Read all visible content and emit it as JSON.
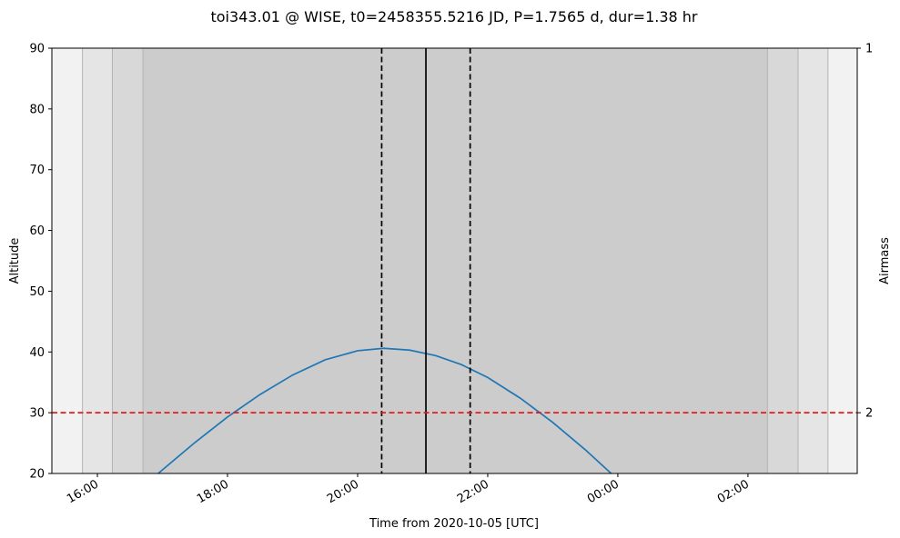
{
  "chart_data": {
    "type": "line",
    "title": "toi343.01 @ WISE, t0=2458355.5216 JD, P=1.7565 d, dur=1.38 hr",
    "xlabel": "Time from 2020-10-05 [UTC]",
    "ylabel": "Altitude",
    "y2label": "Airmass",
    "ylim": [
      20,
      90
    ],
    "xlim_hours": [
      15.3,
      27.68
    ],
    "x_ticks": [
      {
        "label": "16:00",
        "hour": 16
      },
      {
        "label": "18:00",
        "hour": 18
      },
      {
        "label": "20:00",
        "hour": 20
      },
      {
        "label": "22:00",
        "hour": 22
      },
      {
        "label": "00:00",
        "hour": 24
      },
      {
        "label": "02:00",
        "hour": 26
      }
    ],
    "y_ticks": [
      20,
      30,
      40,
      50,
      60,
      70,
      80,
      90
    ],
    "y2_ticks": [
      {
        "label": "1",
        "altitude": 90
      },
      {
        "label": "2",
        "altitude": 30
      }
    ],
    "twilight_bands": [
      {
        "start": 15.3,
        "end": 15.77,
        "color": "#f2f2f2"
      },
      {
        "start": 15.77,
        "end": 16.23,
        "color": "#e5e5e5"
      },
      {
        "start": 16.23,
        "end": 16.7,
        "color": "#d8d8d8"
      },
      {
        "start": 16.7,
        "end": 26.3,
        "color": "#cccccc"
      },
      {
        "start": 26.3,
        "end": 26.77,
        "color": "#d8d8d8"
      },
      {
        "start": 26.77,
        "end": 27.23,
        "color": "#e5e5e5"
      },
      {
        "start": 27.23,
        "end": 27.68,
        "color": "#f2f2f2"
      }
    ],
    "transit": {
      "ingress": 20.37,
      "mid": 21.05,
      "egress": 21.73
    },
    "altitude_limit": 30,
    "series": [
      {
        "color": "#1f77b4",
        "x": [
          16.5,
          17.0,
          17.5,
          18.0,
          18.5,
          19.0,
          19.5,
          20.0,
          20.4,
          20.8,
          21.2,
          21.6,
          22.0,
          22.5,
          23.0,
          23.5,
          24.0,
          24.5
        ],
        "y": [
          16.0,
          20.6,
          25.1,
          29.3,
          33.0,
          36.2,
          38.7,
          40.2,
          40.6,
          40.3,
          39.4,
          37.9,
          35.8,
          32.4,
          28.4,
          23.9,
          19.0,
          14.0
        ]
      }
    ]
  }
}
